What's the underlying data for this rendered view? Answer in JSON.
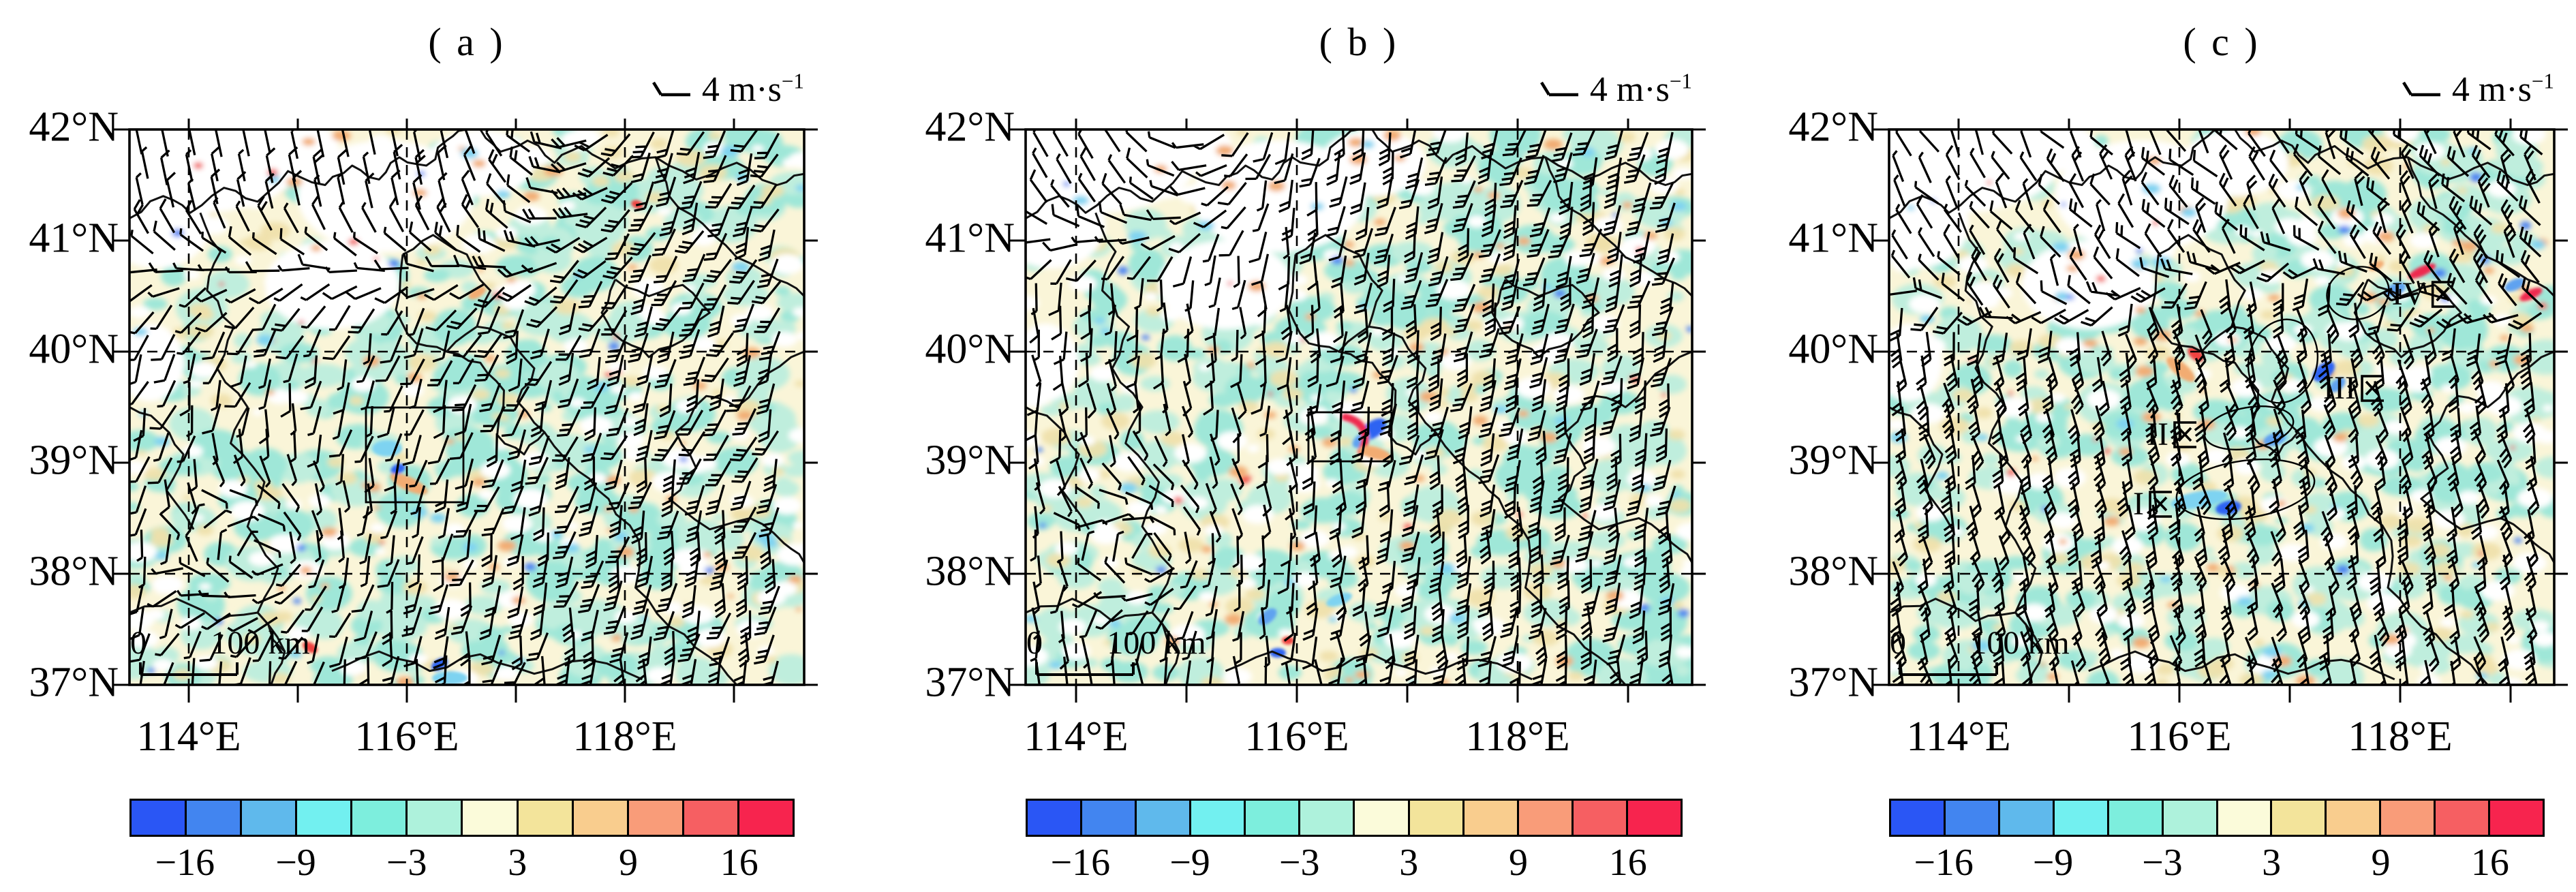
{
  "figure": {
    "kind": "three-panel wind-barb map figure",
    "background": "#ffffff"
  },
  "reference_vector": {
    "icon": "wind-barb-icon",
    "text": "4 m·s",
    "exponent": "−1",
    "full": "4 m·s⁻¹"
  },
  "axes": {
    "y_tick_labels": [
      "42°N",
      "41°N",
      "40°N",
      "39°N",
      "38°N",
      "37°N"
    ],
    "x_tick_labels": [
      "114°E",
      "116°E",
      "118°E"
    ]
  },
  "scale_bar": {
    "zero": "0",
    "label": "100 km"
  },
  "colorbar": {
    "tick_labels": [
      "−16",
      "−9",
      "−3",
      "3",
      "9",
      "16"
    ],
    "tick_positions": [
      0.0833,
      0.25,
      0.4167,
      0.5833,
      0.75,
      0.9167
    ],
    "colors": [
      "#2a56f5",
      "#4285f0",
      "#5fb9ec",
      "#72f0f0",
      "#7deedd",
      "#aef2dc",
      "#fbfbda",
      "#f3e49b",
      "#f9cd8e",
      "#f99c79",
      "#f65f62",
      "#f7244e"
    ]
  },
  "panels": [
    {
      "id": "a",
      "title": "( a )",
      "study_area_box": true
    },
    {
      "id": "b",
      "title": "( b )",
      "study_area_box": true
    },
    {
      "id": "c",
      "title": "( c )",
      "study_area_box": false,
      "regions": [
        {
          "label": "Ⅰ区",
          "roman": "I"
        },
        {
          "label": "Ⅱ区",
          "roman": "II"
        },
        {
          "label": "Ⅲ区",
          "roman": "III"
        },
        {
          "label": "Ⅳ区",
          "roman": "IV"
        }
      ]
    }
  ],
  "chart_data": [
    {
      "type": "map",
      "panel": "( a )",
      "x_axis": {
        "tick_labels": [
          "114°E",
          "116°E",
          "118°E"
        ],
        "range_deg_east": [
          113.5,
          119.6
        ]
      },
      "y_axis": {
        "tick_labels": [
          "42°N",
          "41°N",
          "40°N",
          "39°N",
          "38°N",
          "37°N"
        ],
        "range_deg_north": [
          37,
          42
        ]
      },
      "wind_reference_m_per_s": 4,
      "scale_bar_km": 100,
      "shading_colorbar": {
        "tick_values": [
          -16,
          -9,
          -3,
          3,
          9,
          16
        ],
        "colors": [
          "#2a56f5",
          "#4285f0",
          "#5fb9ec",
          "#72f0f0",
          "#7deedd",
          "#aef2dc",
          "#fbfbda",
          "#f3e49b",
          "#f9cd8e",
          "#f99c79",
          "#f65f62",
          "#f7244e"
        ]
      },
      "overlays": [
        "study-area-box",
        "cyclonic-circulation-southwest"
      ]
    },
    {
      "type": "map",
      "panel": "( b )",
      "x_axis": {
        "tick_labels": [
          "114°E",
          "116°E",
          "118°E"
        ],
        "range_deg_east": [
          113.5,
          119.6
        ]
      },
      "y_axis": {
        "tick_labels": [
          "42°N",
          "41°N",
          "40°N",
          "39°N",
          "38°N",
          "37°N"
        ],
        "range_deg_north": [
          37,
          42
        ]
      },
      "wind_reference_m_per_s": 4,
      "scale_bar_km": 100,
      "shading_colorbar": {
        "tick_values": [
          -16,
          -9,
          -3,
          3,
          9,
          16
        ],
        "colors": [
          "#2a56f5",
          "#4285f0",
          "#5fb9ec",
          "#72f0f0",
          "#7deedd",
          "#aef2dc",
          "#fbfbda",
          "#f3e49b",
          "#f9cd8e",
          "#f99c79",
          "#f65f62",
          "#f7244e"
        ]
      },
      "overlays": [
        "study-area-box",
        "convergence-couplet-in-box",
        "strong-southerly-jet-east"
      ]
    },
    {
      "type": "map",
      "panel": "( c )",
      "x_axis": {
        "tick_labels": [
          "114°E",
          "116°E",
          "118°E"
        ],
        "range_deg_east": [
          113.5,
          119.6
        ]
      },
      "y_axis": {
        "tick_labels": [
          "42°N",
          "41°N",
          "40°N",
          "39°N",
          "38°N",
          "37°N"
        ],
        "range_deg_north": [
          37,
          42
        ]
      },
      "wind_reference_m_per_s": 4,
      "scale_bar_km": 100,
      "shading_colorbar": {
        "tick_values": [
          -16,
          -9,
          -3,
          3,
          9,
          16
        ],
        "colors": [
          "#2a56f5",
          "#4285f0",
          "#5fb9ec",
          "#72f0f0",
          "#7deedd",
          "#aef2dc",
          "#fbfbda",
          "#f3e49b",
          "#f9cd8e",
          "#f99c79",
          "#f65f62",
          "#f7244e"
        ]
      },
      "region_labels": [
        "Ⅰ区",
        "Ⅱ区",
        "Ⅲ区",
        "Ⅳ区"
      ],
      "overlays": [
        "region-ellipse-I",
        "region-ellipse-II",
        "region-ellipse-III",
        "region-ellipse-IV"
      ]
    }
  ]
}
